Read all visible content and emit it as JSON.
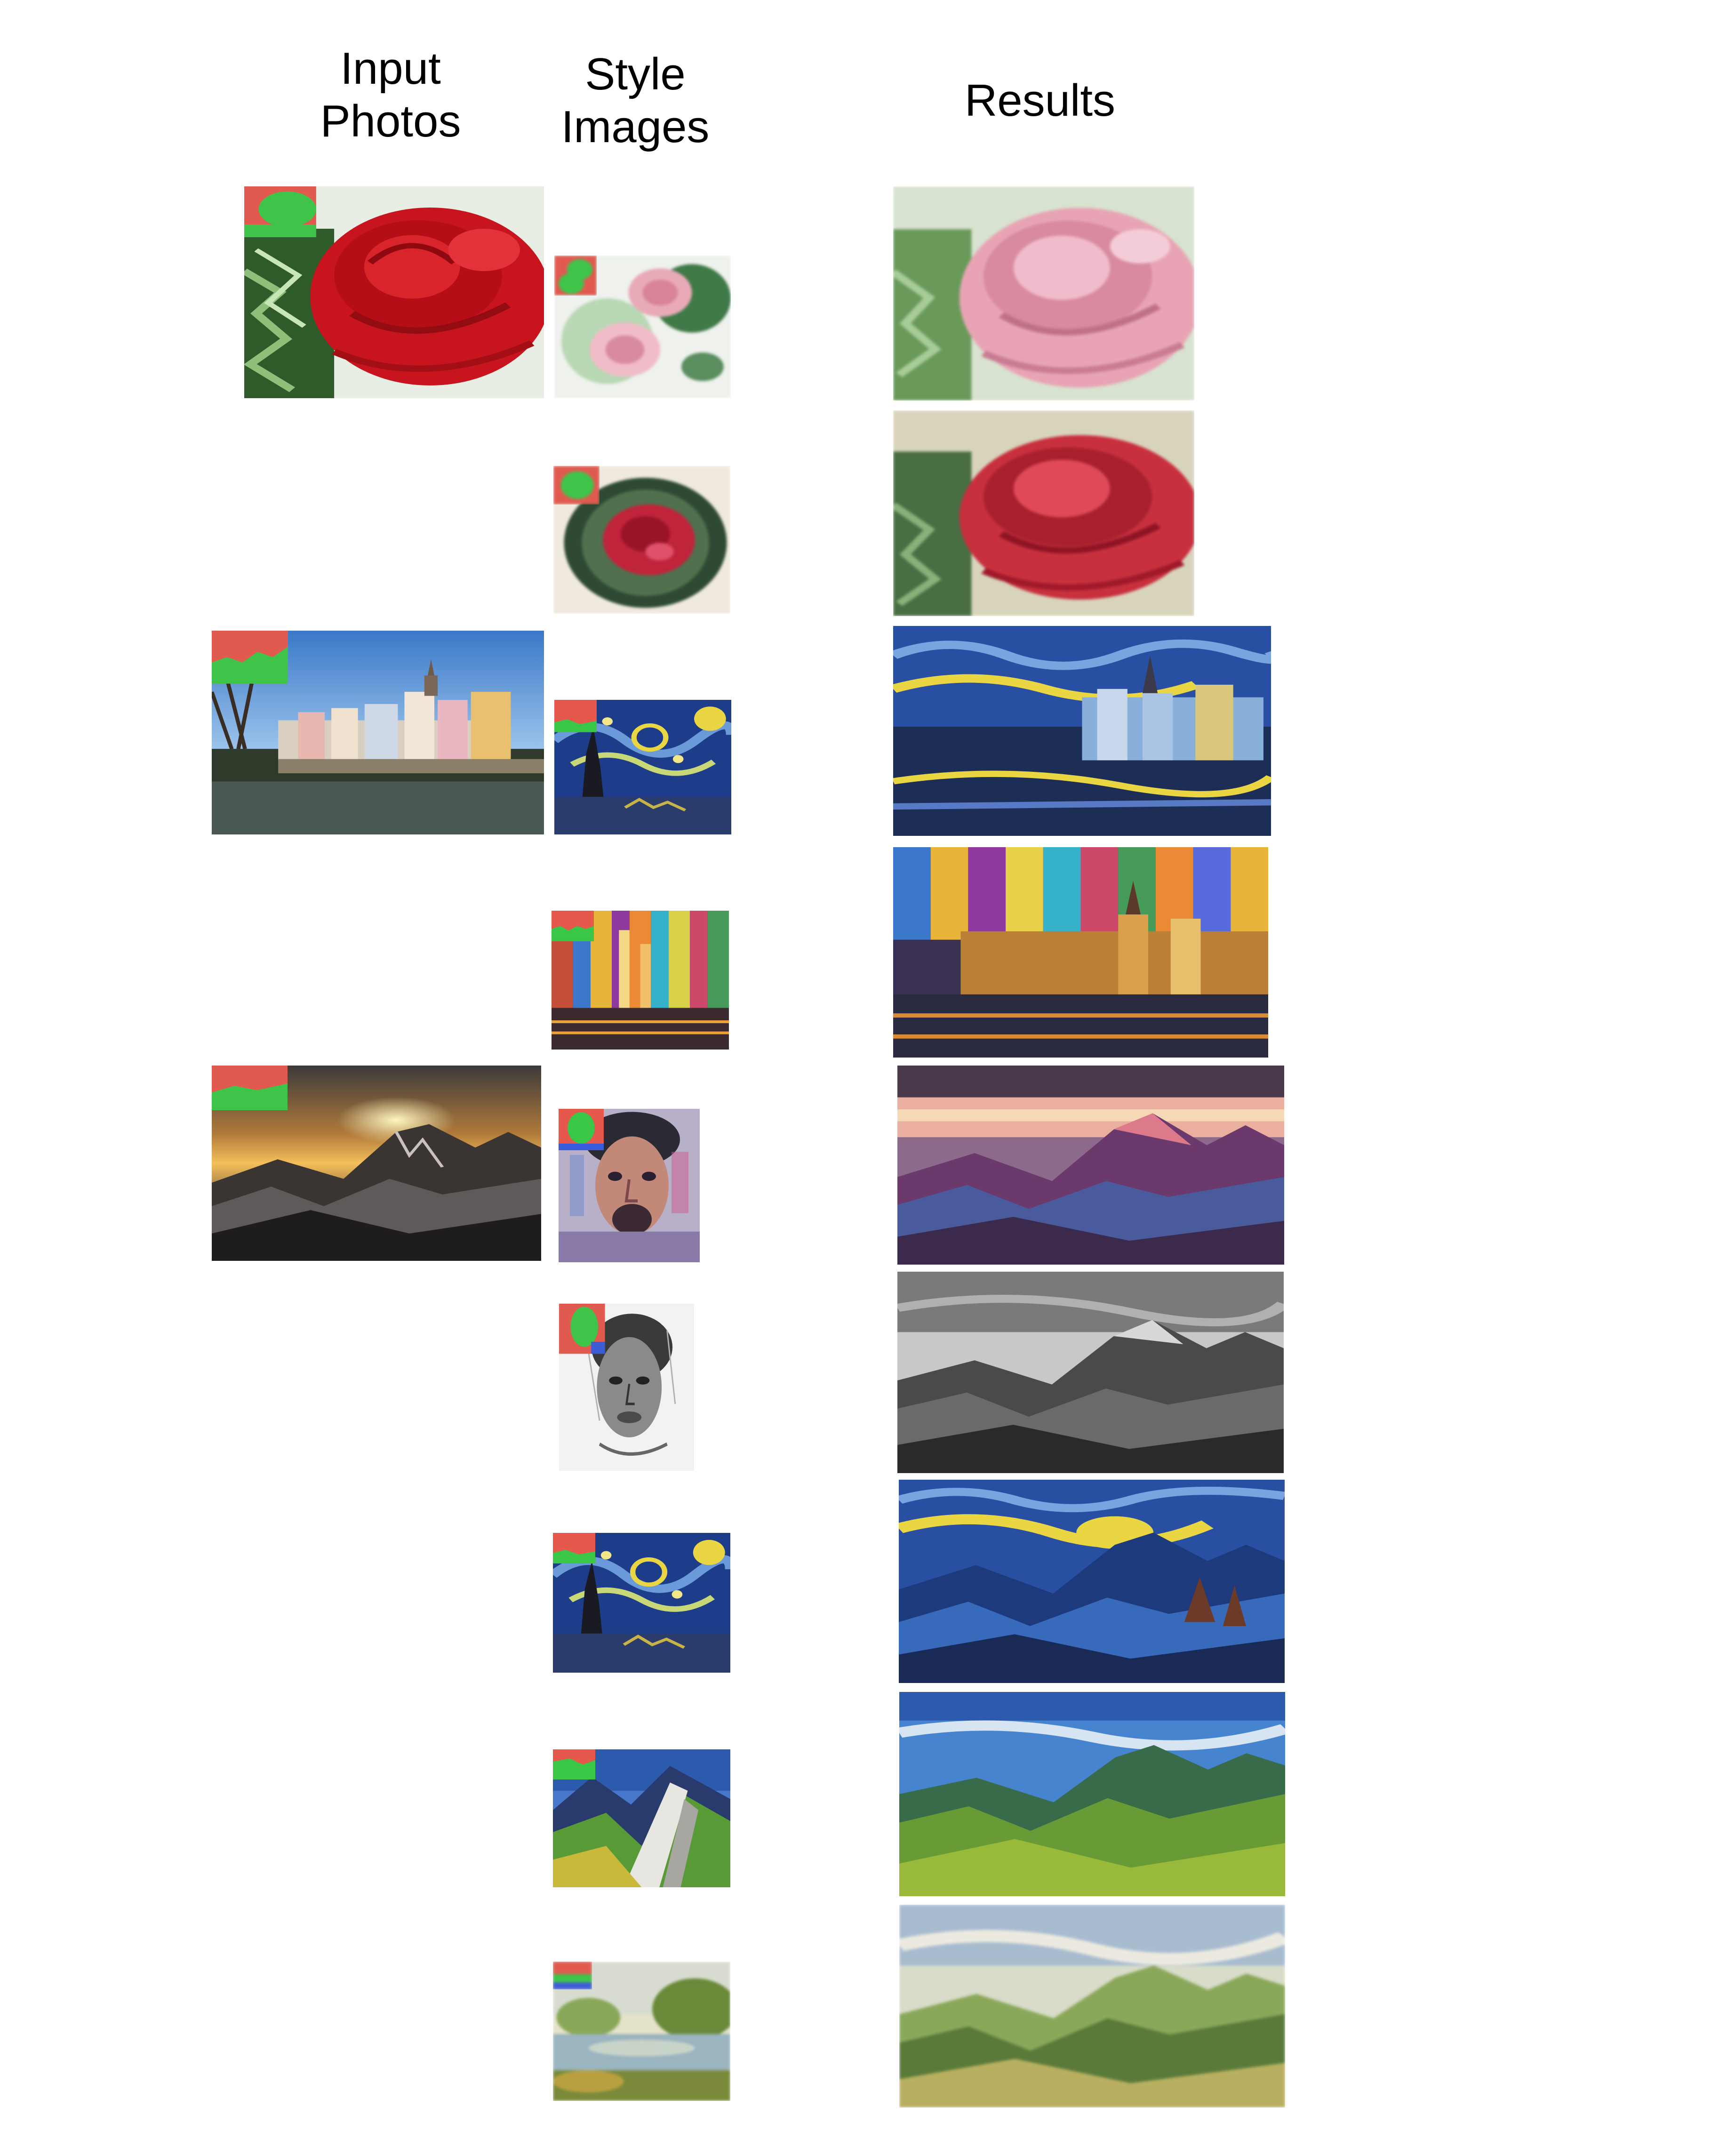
{
  "headings": {
    "input_photos": "Input\nPhotos",
    "style_images": "Style\nImages",
    "results": "Results"
  },
  "colors": {
    "mask_red": "#e05a4f",
    "mask_green": "#3fc44a",
    "mask_blue": "#3c5cd6",
    "rose_red": "#c8141e",
    "starry_blue": "#2a4f9e",
    "starry_yellow": "#e9d64a",
    "sky_blue": "#4a84cc"
  },
  "rows": [
    {
      "input": "rose-photo",
      "style": "pink-roses-watercolor",
      "result": "pink-rose-result"
    },
    {
      "input": "",
      "style": "red-rose-watercolor",
      "result": "red-rose-result"
    },
    {
      "input": "tuebingen-photo",
      "style": "starry-night",
      "result": "tuebingen-starry-result"
    },
    {
      "input": "",
      "style": "colorful-city-painting",
      "result": "tuebingen-colorful-result"
    },
    {
      "input": "mountain-sunset-photo",
      "style": "color-portrait-man",
      "result": "mountain-portrait-result"
    },
    {
      "input": "",
      "style": "pencil-portrait-woman",
      "result": "mountain-pencil-result"
    },
    {
      "input": "",
      "style": "starry-night",
      "result": "mountain-starry-result"
    },
    {
      "input": "",
      "style": "mountain-ridge-painting",
      "result": "mountain-green-result"
    },
    {
      "input": "",
      "style": "river-landscape-painting",
      "result": "mountain-pastel-result"
    }
  ]
}
